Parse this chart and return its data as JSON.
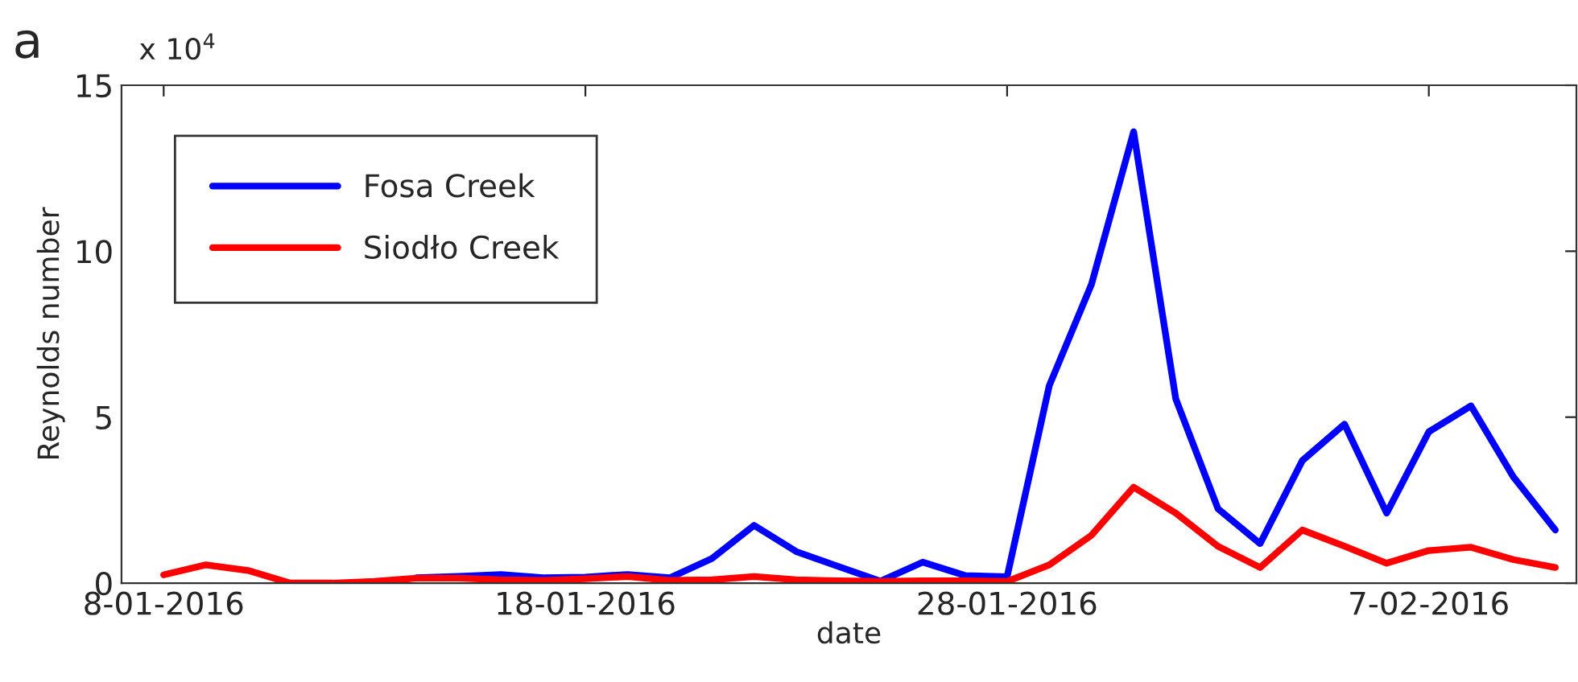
{
  "chart_data": {
    "type": "line",
    "xlabel": "date",
    "ylabel": "Reynolds number",
    "annotations": [
      "a",
      "x 10$^{4}$"
    ],
    "x": [
      "2016-01-08",
      "2016-01-09",
      "2016-01-10",
      "2016-01-11",
      "2016-01-12",
      "2016-01-13",
      "2016-01-14",
      "2016-01-15",
      "2016-01-16",
      "2016-01-17",
      "2016-01-18",
      "2016-01-19",
      "2016-01-20",
      "2016-01-21",
      "2016-01-22",
      "2016-01-23",
      "2016-01-24",
      "2016-01-25",
      "2016-01-26",
      "2016-01-27",
      "2016-01-28",
      "2016-01-29",
      "2016-01-30",
      "2016-01-31",
      "2016-02-01",
      "2016-02-02",
      "2016-02-03",
      "2016-02-04",
      "2016-02-05",
      "2016-02-06",
      "2016-02-07",
      "2016-02-08",
      "2016-02-09",
      "2016-02-10"
    ],
    "series": [
      {
        "name": "Fosa Creek",
        "color": "#0000ff",
        "values": [
          null,
          null,
          null,
          null,
          null,
          null,
          0.16,
          0.2,
          0.26,
          0.16,
          0.18,
          0.26,
          0.16,
          0.74,
          1.74,
          0.95,
          0.5,
          0.06,
          0.63,
          0.23,
          0.19,
          5.95,
          9.0,
          13.6,
          5.55,
          2.24,
          1.19,
          3.69,
          4.79,
          2.11,
          4.56,
          5.34,
          3.21,
          1.6
        ]
      },
      {
        "name": "Siodło Creek",
        "color": "#ff0000",
        "values": [
          0.25,
          0.55,
          0.38,
          0,
          0,
          0.05,
          0.15,
          0.15,
          0.1,
          0.08,
          0.13,
          0.2,
          0.08,
          0.1,
          0.2,
          0.1,
          0.07,
          0.05,
          0.07,
          0.07,
          0.05,
          0.55,
          1.44,
          2.89,
          2.11,
          1.11,
          0.47,
          1.6,
          1.11,
          0.6,
          0.98,
          1.08,
          0.71,
          0.47
        ]
      }
    ],
    "xlim": [
      "2016-01-07",
      "2016-02-10T12:00"
    ],
    "xticks": [
      {
        "value": "2016-01-08",
        "label": "8-01-2016"
      },
      {
        "value": "2016-01-18",
        "label": "18-01-2016"
      },
      {
        "value": "2016-01-28",
        "label": "28-01-2016"
      },
      {
        "value": "2016-02-07",
        "label": "7-02-2016"
      }
    ],
    "ylim": [
      0,
      15
    ],
    "yticks": [
      0,
      5,
      10,
      15
    ],
    "legend": "top left",
    "line_style": "solid"
  }
}
